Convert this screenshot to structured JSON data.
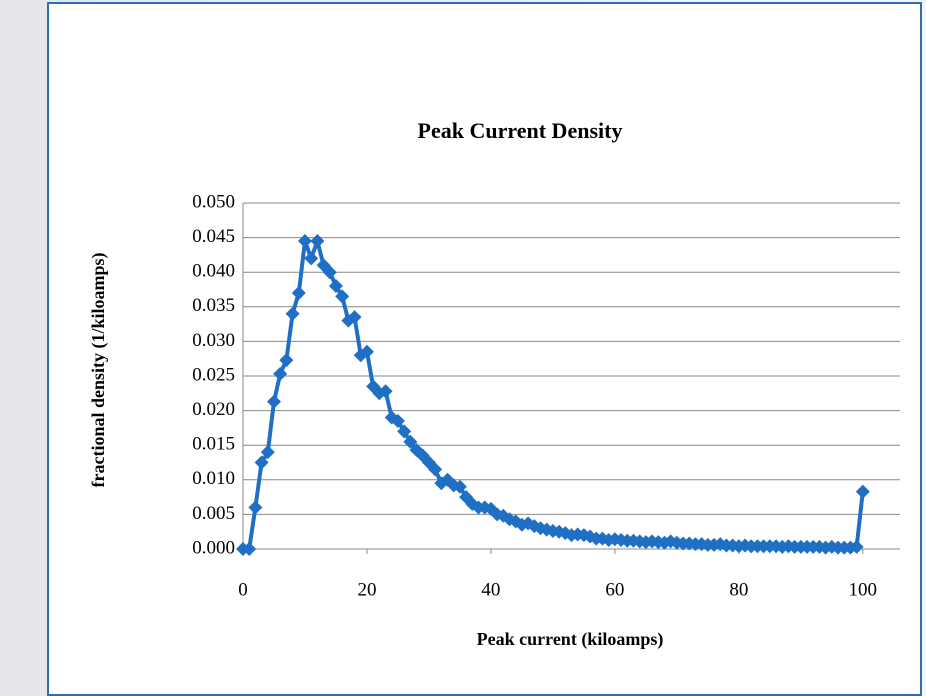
{
  "chart_data": {
    "type": "line",
    "title": "Peak Current Density",
    "x_label": "Peak current (kiloamps)",
    "y_label": "fractional density (1/kiloamps)",
    "color": "#1f6fc5",
    "grid": true,
    "xlim": [
      0,
      106
    ],
    "xticks": [
      0,
      20,
      40,
      60,
      80,
      100
    ],
    "ylim": [
      0,
      0.05
    ],
    "yticks": [
      {
        "value": 0,
        "label": "0.000"
      },
      {
        "value": 0.005,
        "label": "0.005"
      },
      {
        "value": 0.01,
        "label": "0.010"
      },
      {
        "value": 0.015,
        "label": "0.015"
      },
      {
        "value": 0.02,
        "label": "0.020"
      },
      {
        "value": 0.025,
        "label": "0.025"
      },
      {
        "value": 0.03,
        "label": "0.030"
      },
      {
        "value": 0.035,
        "label": "0.035"
      },
      {
        "value": 0.04,
        "label": "0.040"
      },
      {
        "value": 0.045,
        "label": "0.045"
      },
      {
        "value": 0.05,
        "label": "0.050"
      }
    ],
    "x": [
      0,
      1,
      2,
      3,
      4,
      5,
      6,
      7,
      8,
      9,
      10,
      11,
      12,
      13,
      14,
      15,
      16,
      17,
      18,
      19,
      20,
      21,
      22,
      23,
      24,
      25,
      26,
      27,
      28,
      29,
      30,
      31,
      32,
      33,
      34,
      35,
      36,
      37,
      38,
      39,
      40,
      41,
      42,
      43,
      44,
      45,
      46,
      47,
      48,
      49,
      50,
      51,
      52,
      53,
      54,
      55,
      56,
      57,
      58,
      59,
      60,
      61,
      62,
      63,
      64,
      65,
      66,
      67,
      68,
      69,
      70,
      71,
      72,
      73,
      74,
      75,
      76,
      77,
      78,
      79,
      80,
      81,
      82,
      83,
      84,
      85,
      86,
      87,
      88,
      89,
      90,
      91,
      92,
      93,
      94,
      95,
      96,
      97,
      98,
      99,
      100
    ],
    "values": [
      0,
      0,
      0.006,
      0.0125,
      0.014,
      0.0213,
      0.0253,
      0.0273,
      0.034,
      0.037,
      0.0445,
      0.042,
      0.0445,
      0.041,
      0.04,
      0.038,
      0.0365,
      0.033,
      0.0335,
      0.028,
      0.0285,
      0.0235,
      0.0225,
      0.0228,
      0.019,
      0.0185,
      0.017,
      0.0155,
      0.0143,
      0.0135,
      0.0125,
      0.0115,
      0.0095,
      0.01,
      0.0092,
      0.009,
      0.0075,
      0.0065,
      0.006,
      0.006,
      0.0058,
      0.005,
      0.0048,
      0.0043,
      0.004,
      0.0035,
      0.0037,
      0.0033,
      0.003,
      0.0028,
      0.0026,
      0.0025,
      0.0023,
      0.002,
      0.0021,
      0.002,
      0.0018,
      0.0015,
      0.0015,
      0.0013,
      0.0014,
      0.0013,
      0.0012,
      0.0012,
      0.0011,
      0.001,
      0.0011,
      0.001,
      0.0009,
      0.0011,
      0.0009,
      0.0008,
      0.0008,
      0.0007,
      0.0007,
      0.0006,
      0.0006,
      0.0007,
      0.0005,
      0.0005,
      0.0004,
      0.0005,
      0.0004,
      0.0004,
      0.0004,
      0.0004,
      0.0004,
      0.0003,
      0.0004,
      0.0003,
      0.0003,
      0.0003,
      0.0003,
      0.0003,
      0.0002,
      0.0003,
      0.0002,
      0.0002,
      0.0002,
      0.0003,
      0.0083
    ]
  }
}
